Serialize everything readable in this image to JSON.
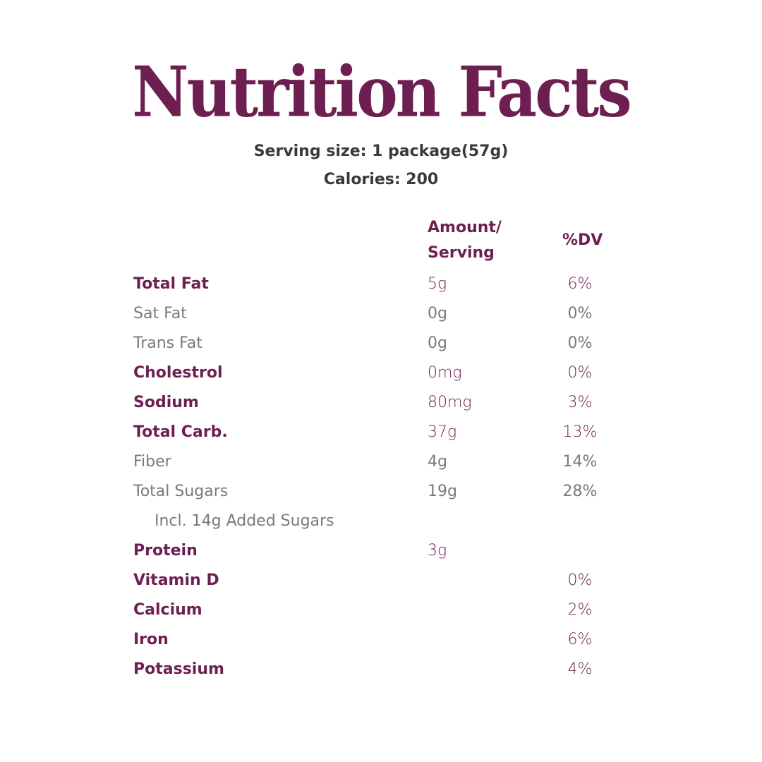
{
  "title": "Nutrition Facts",
  "serving_size": "Serving size: 1 package(57g)",
  "calories": "Calories: 200",
  "colors": {
    "accent": "#6e1f52",
    "muted": "#7a7a7a",
    "text": "#3a3a3a"
  },
  "columns": {
    "amount_line1": "Amount/",
    "amount_line2": "Serving",
    "dv": "%DV"
  },
  "rows": [
    {
      "label": "Total Fat",
      "amount": "5g",
      "dv": "6%",
      "style": "main"
    },
    {
      "label": "Sat Fat",
      "amount": "0g",
      "dv": "0%",
      "style": "minor"
    },
    {
      "label": "Trans Fat",
      "amount": "0g",
      "dv": "0%",
      "style": "minor"
    },
    {
      "label": "Cholestrol",
      "amount": "0mg",
      "dv": "0%",
      "style": "main"
    },
    {
      "label": "Sodium",
      "amount": "80mg",
      "dv": "3%",
      "style": "main"
    },
    {
      "label": "Total Carb.",
      "amount": "37g",
      "dv": "13%",
      "style": "main"
    },
    {
      "label": "Fiber",
      "amount": "4g",
      "dv": "14%",
      "style": "minor"
    },
    {
      "label": "Total Sugars",
      "amount": "19g",
      "dv": "28%",
      "style": "minor"
    },
    {
      "label": "Incl. 14g Added Sugars",
      "amount": "",
      "dv": "",
      "style": "minor indent"
    },
    {
      "label": "Protein",
      "amount": "3g",
      "dv": "",
      "style": "main"
    },
    {
      "label": "Vitamin D",
      "amount": "",
      "dv": "0%",
      "style": "main"
    },
    {
      "label": "Calcium",
      "amount": "",
      "dv": "2%",
      "style": "main"
    },
    {
      "label": "Iron",
      "amount": "",
      "dv": "6%",
      "style": "main"
    },
    {
      "label": "Potassium",
      "amount": "",
      "dv": "4%",
      "style": "main"
    }
  ]
}
